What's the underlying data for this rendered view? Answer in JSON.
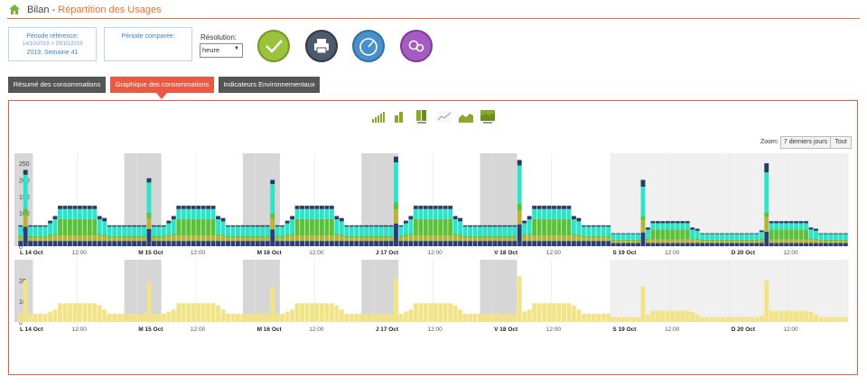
{
  "header": {
    "title": "Bilan",
    "subtitle": "Répartition des Usages"
  },
  "period_ref": {
    "label": "Période référence:",
    "dates": "14/10/2019 > 20/10/2019",
    "week": "2019, Semaine 41"
  },
  "period_cmp": {
    "label": "Période comparée:"
  },
  "resolution": {
    "label": "Résolution:",
    "value": "heure"
  },
  "tabs": [
    {
      "label": "Résumé des consommations"
    },
    {
      "label": "Graphique des consommations"
    },
    {
      "label": "Indicateurs Environnementaux"
    }
  ],
  "zoom": {
    "label": "Zoom:",
    "btn_7": "7 derniers jours",
    "btn_all": "Tout"
  },
  "colors": {
    "accent": "#e9722f",
    "tab_active": "#e85a42",
    "tab_inactive": "#555555",
    "check": "#9ac33b",
    "print": "#4d5a6b",
    "gauge": "#4a90c8",
    "settings": "#a65bc0"
  },
  "chart_data": [
    {
      "type": "bar",
      "stacked": true,
      "ylim": [
        0,
        280
      ],
      "yticks": [
        "250",
        "200",
        "150",
        "100",
        "50",
        "0"
      ],
      "day_labels": [
        "L 14 Oct",
        "M 15 Oct",
        "M 16 Oct",
        "J 17 Oct",
        "V 18 Oct",
        "S 19 Oct",
        "D 20 Oct"
      ],
      "hour_label": "12:00",
      "series": [
        {
          "color": "#2a3f7a",
          "pattern": [
            16,
            16,
            16,
            16,
            16,
            16,
            16,
            16,
            16,
            16,
            16,
            16,
            16,
            16,
            16,
            16,
            16,
            16,
            16,
            16,
            16,
            16,
            16,
            16
          ]
        },
        {
          "color": "#b8b438",
          "pattern": [
            10,
            10,
            10,
            10,
            10,
            10,
            14,
            16,
            16,
            16,
            16,
            16,
            16,
            16,
            16,
            16,
            16,
            14,
            10,
            10,
            10,
            10,
            10,
            10
          ]
        },
        {
          "color": "#5cc13a",
          "pattern": [
            5,
            5,
            5,
            5,
            5,
            5,
            5,
            5,
            50,
            50,
            50,
            50,
            50,
            50,
            50,
            50,
            5,
            5,
            5,
            5,
            5,
            5,
            5,
            5
          ]
        },
        {
          "color": "#2ee4c8",
          "pattern": [
            28,
            28,
            28,
            28,
            28,
            28,
            34,
            44,
            30,
            30,
            30,
            30,
            30,
            30,
            30,
            30,
            44,
            40,
            28,
            28,
            28,
            28,
            28,
            28
          ]
        },
        {
          "color": "#2a3a63",
          "pattern": [
            4,
            4,
            4,
            4,
            4,
            4,
            8,
            10,
            10,
            10,
            10,
            10,
            10,
            10,
            10,
            10,
            10,
            10,
            4,
            4,
            4,
            4,
            4,
            4
          ]
        }
      ],
      "weekend_scale": 0.62,
      "spikes": [
        {
          "day": 0,
          "hour": 1,
          "value": 230
        },
        {
          "day": 1,
          "hour": 2,
          "value": 205
        },
        {
          "day": 2,
          "hour": 3,
          "value": 200
        },
        {
          "day": 3,
          "hour": 4,
          "value": 270
        },
        {
          "day": 4,
          "hour": 5,
          "value": 260
        },
        {
          "day": 5,
          "hour": 6,
          "value": 200
        },
        {
          "day": 6,
          "hour": 7,
          "value": 250
        }
      ]
    },
    {
      "type": "bar",
      "ylim": [
        0,
        30
      ],
      "yticks": [
        "20",
        "10",
        "0"
      ],
      "day_labels": [
        "L 14 Oct",
        "M 15 Oct",
        "M 16 Oct",
        "J 17 Oct",
        "V 18 Oct",
        "S 19 Oct",
        "D 20 Oct"
      ],
      "hour_label": "12:00",
      "series": [
        {
          "color": "#f2e486",
          "pattern": [
            4,
            4,
            4,
            4,
            4,
            4,
            5,
            6,
            9,
            9,
            9,
            9,
            9,
            9,
            9,
            9,
            8,
            6,
            4,
            4,
            4,
            4,
            4,
            4
          ]
        }
      ],
      "weekend_scale": 0.6,
      "spikes": [
        {
          "day": 0,
          "hour": 1,
          "value": 20
        },
        {
          "day": 1,
          "hour": 2,
          "value": 19
        },
        {
          "day": 2,
          "hour": 3,
          "value": 17
        },
        {
          "day": 3,
          "hour": 4,
          "value": 21
        },
        {
          "day": 4,
          "hour": 5,
          "value": 22
        },
        {
          "day": 5,
          "hour": 6,
          "value": 17
        },
        {
          "day": 6,
          "hour": 7,
          "value": 20
        }
      ]
    }
  ]
}
